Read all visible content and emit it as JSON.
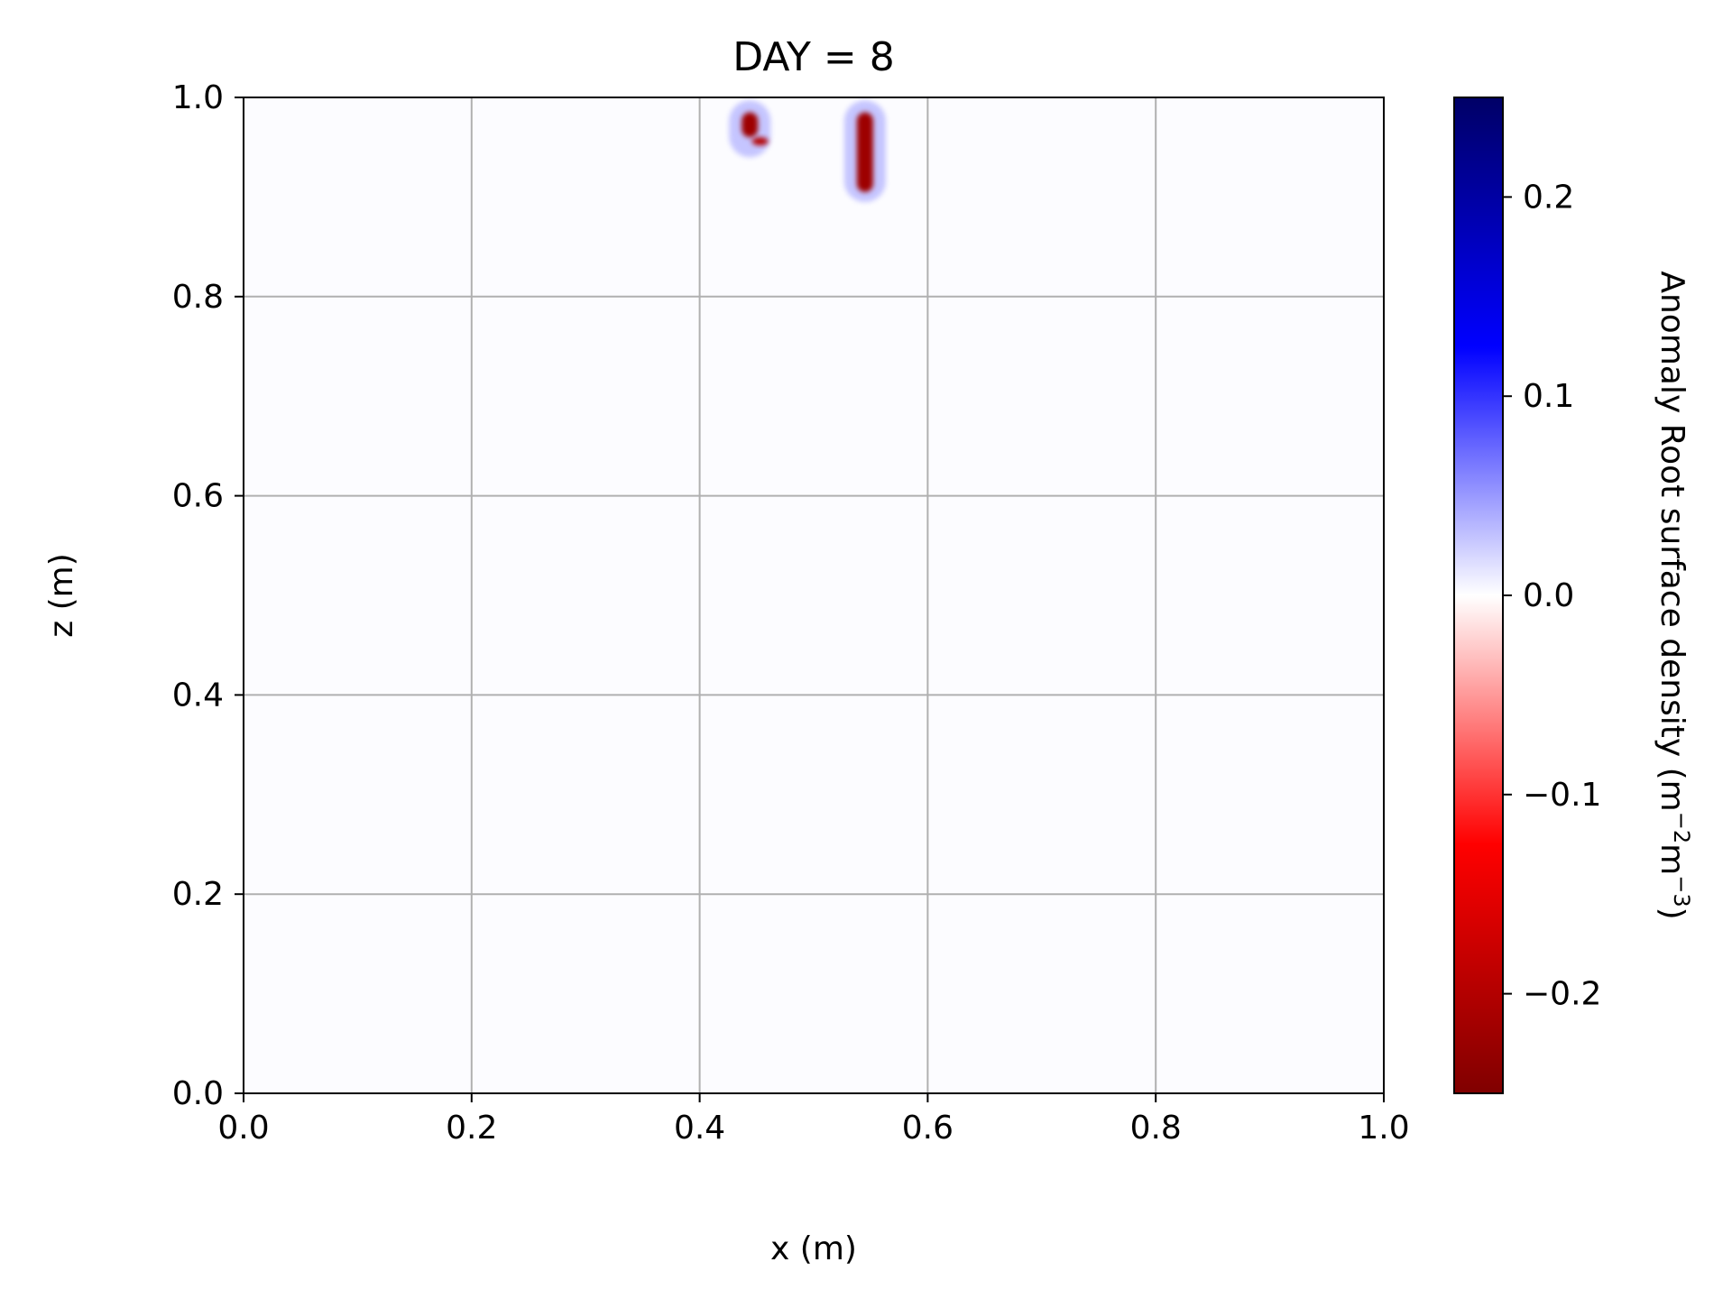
{
  "chart_data": {
    "type": "heatmap",
    "title": "DAY = 8",
    "xlabel": "x (m)",
    "ylabel": "z (m)",
    "xlim": [
      0.0,
      1.0
    ],
    "ylim": [
      0.0,
      1.0
    ],
    "x_ticks": [
      "0.0",
      "0.2",
      "0.4",
      "0.6",
      "0.8",
      "1.0"
    ],
    "y_ticks": [
      "0.0",
      "0.2",
      "0.4",
      "0.6",
      "0.8",
      "1.0"
    ],
    "grid": true,
    "background_value": 0.0,
    "colormap": "seismic",
    "colorbar": {
      "label_main": "Anomaly Root surface density (m",
      "label_exp1": "−2",
      "label_mid": "m",
      "label_exp2": "−3",
      "label_end": ")",
      "range": [
        -0.25,
        0.25
      ],
      "ticks": [
        {
          "value": 0.2,
          "label": "0.2"
        },
        {
          "value": 0.1,
          "label": "0.1"
        },
        {
          "value": 0.0,
          "label": "0.0"
        },
        {
          "value": -0.1,
          "label": "−0.1"
        },
        {
          "value": -0.2,
          "label": "−0.2"
        }
      ],
      "colors": {
        "top": "#000066",
        "blue": "#0000ff",
        "white": "#ffffff",
        "red": "#ff0000",
        "bottom": "#800000"
      }
    },
    "features": [
      {
        "name": "root-anomaly-left",
        "x": 0.444,
        "z_top": 0.985,
        "z_bottom": 0.96,
        "value": -0.22
      },
      {
        "name": "root-anomaly-left-tip",
        "x": 0.453,
        "z_top": 0.96,
        "z_bottom": 0.952,
        "value": -0.2
      },
      {
        "name": "root-anomaly-right",
        "x": 0.545,
        "z_top": 0.985,
        "z_bottom": 0.905,
        "value": -0.22
      },
      {
        "name": "halo-left",
        "x": 0.444,
        "z_top": 0.997,
        "z_bottom": 0.94,
        "value": 0.05
      },
      {
        "name": "halo-right",
        "x": 0.545,
        "z_top": 0.997,
        "z_bottom": 0.895,
        "value": 0.05
      }
    ]
  }
}
